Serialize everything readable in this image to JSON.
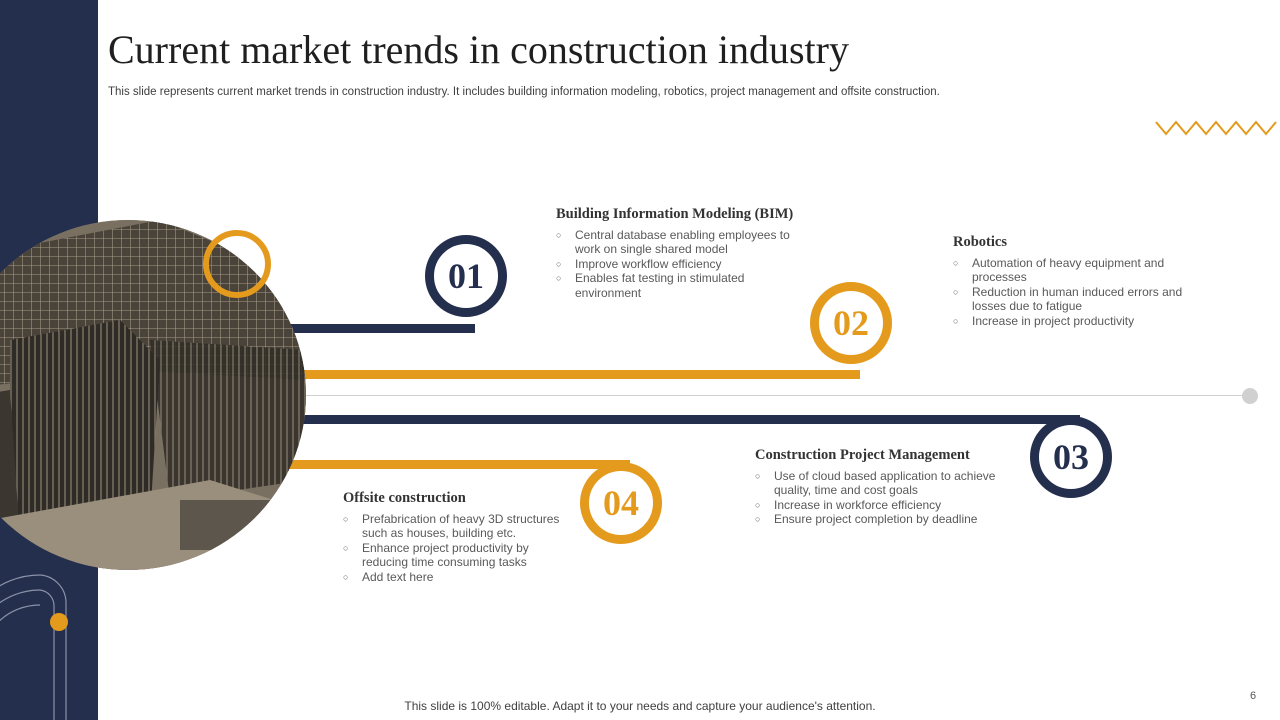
{
  "title": "Current market trends in construction industry",
  "subtitle": "This slide represents current market trends in construction industry. It includes building information modeling, robotics, project management and offsite construction.",
  "colors": {
    "navy": "#242f4e",
    "gold": "#e49b1d",
    "gray": "#d0d0d0"
  },
  "sections": [
    {
      "number": "01",
      "title": "Building  Information  Modeling (BIM)",
      "bullets": [
        "Central database enabling employees to work on single shared model",
        "Improve workflow efficiency",
        "Enables fat testing in stimulated environment"
      ]
    },
    {
      "number": "02",
      "title": "Robotics",
      "bullets": [
        "Automation of heavy  equipment and processes",
        "Reduction in human induced errors and losses due to fatigue",
        "Increase in project productivity"
      ]
    },
    {
      "number": "03",
      "title": "Construction  Project  Management",
      "bullets": [
        "Use of cloud based application to achieve quality, time and cost goals",
        "Increase in workforce efficiency",
        "Ensure project completion by deadline"
      ]
    },
    {
      "number": "04",
      "title": "Offsite construction",
      "bullets": [
        "Prefabrication of heavy 3D structures such as houses, building etc.",
        "Enhance project productivity by reducing time consuming tasks",
        "Add text here"
      ]
    }
  ],
  "image": {
    "name": "construction-site-photo"
  },
  "footer": "This slide is 100% editable. Adapt it to your needs and capture your audience's attention.",
  "page_number": "6"
}
